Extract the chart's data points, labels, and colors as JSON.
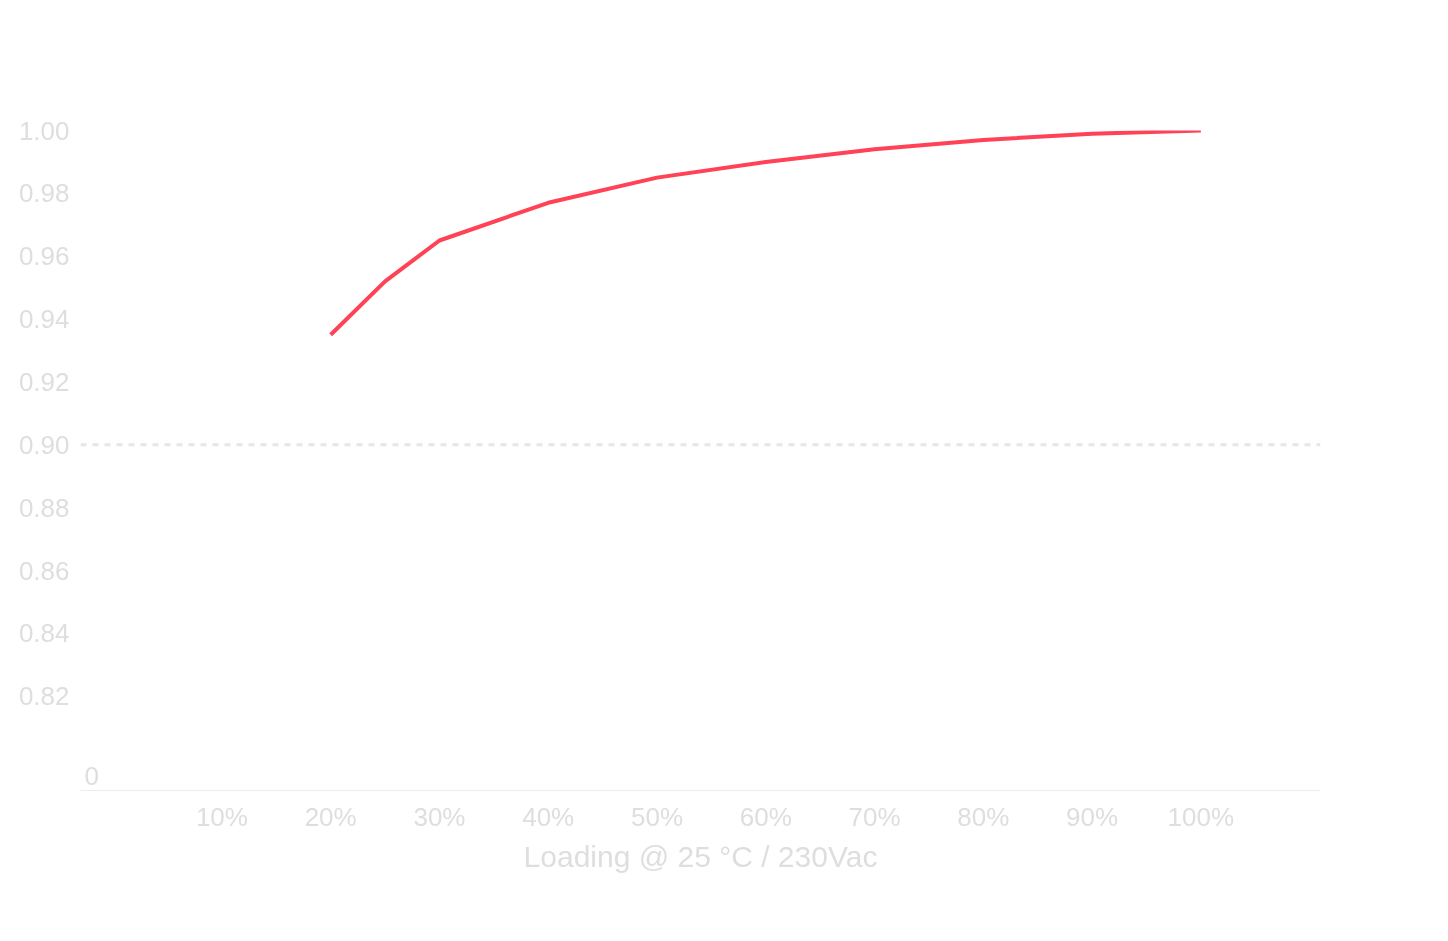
{
  "chart_data": {
    "type": "line",
    "xlabel": "Loading @ 25 °C / 230Vac",
    "annotations": [
      "0"
    ],
    "x": [
      20,
      25,
      30,
      40,
      50,
      60,
      70,
      80,
      90,
      100
    ],
    "series": [
      {
        "color": "#ff4255",
        "values": [
          0.935,
          0.952,
          0.965,
          0.977,
          0.985,
          0.99,
          0.994,
          0.997,
          0.999,
          1.0
        ]
      }
    ],
    "xlim": [
      -3,
      111
    ],
    "xticks": [
      {
        "value": 10,
        "label": "10%"
      },
      {
        "value": 20,
        "label": "20%"
      },
      {
        "value": 30,
        "label": "30%"
      },
      {
        "value": 40,
        "label": "40%"
      },
      {
        "value": 50,
        "label": "50%"
      },
      {
        "value": 60,
        "label": "60%"
      },
      {
        "value": 70,
        "label": "70%"
      },
      {
        "value": 80,
        "label": "80%"
      },
      {
        "value": 90,
        "label": "90%"
      },
      {
        "value": 100,
        "label": "100%"
      }
    ],
    "ylim": [
      0.79,
      1.0
    ],
    "yticks": [
      {
        "value": 0.82,
        "label": "0.82"
      },
      {
        "value": 0.84,
        "label": "0.84"
      },
      {
        "value": 0.86,
        "label": "0.86"
      },
      {
        "value": 0.88,
        "label": "0.88"
      },
      {
        "value": 0.9,
        "label": "0.90"
      },
      {
        "value": 0.92,
        "label": "0.92"
      },
      {
        "value": 0.94,
        "label": "0.94"
      },
      {
        "value": 0.96,
        "label": "0.96"
      },
      {
        "value": 0.98,
        "label": "0.98"
      },
      {
        "value": 1.0,
        "label": "1.00"
      }
    ],
    "ref_lines": [
      {
        "axis": "y",
        "value": 0.9,
        "color": "#e6e6e6",
        "line_style": "dashed"
      }
    ],
    "line_style": "solid",
    "marker": "none",
    "grid": false
  }
}
